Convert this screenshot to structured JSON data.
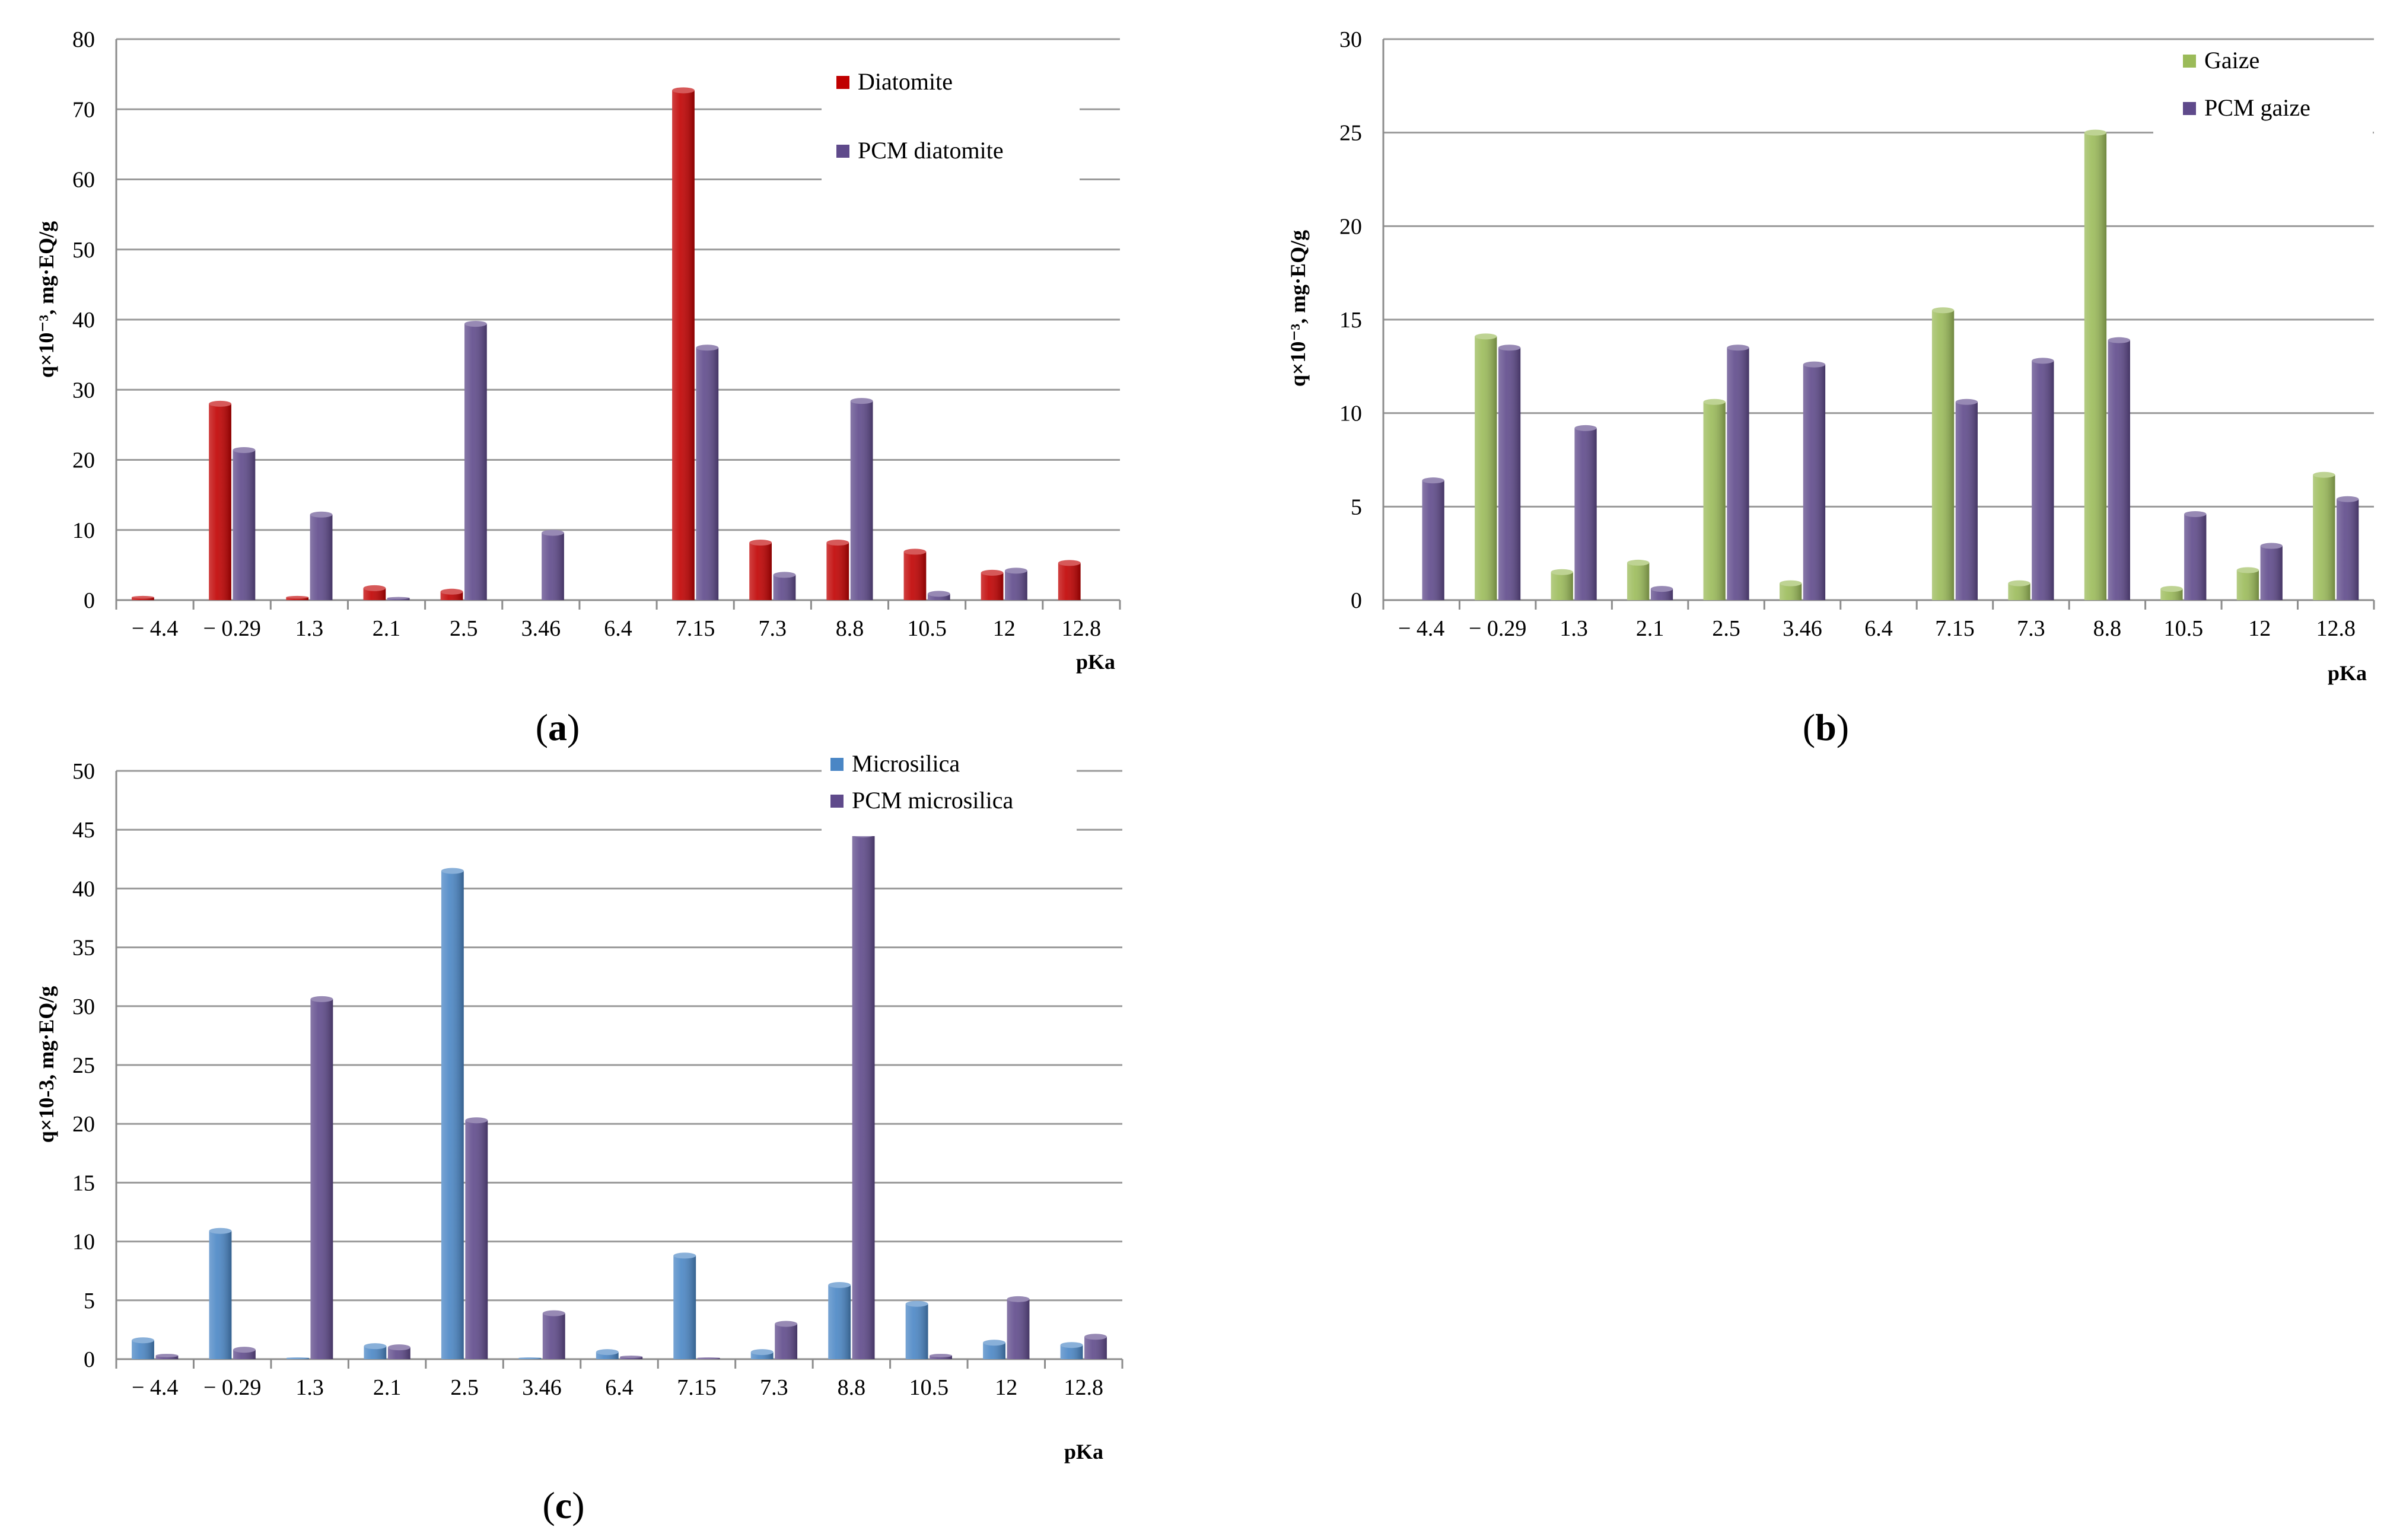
{
  "chart_data": [
    {
      "id": "a",
      "type": "bar",
      "panel_label": "a",
      "categories": [
        "− 4.4",
        "− 0.29",
        "1.3",
        "2.1",
        "2.5",
        "3.46",
        "6.4",
        "7.15",
        "7.3",
        "8.8",
        "10.5",
        "12",
        "12.8"
      ],
      "series": [
        {
          "name": "Diatomite",
          "color": "#c00000",
          "values": [
            0.4,
            28,
            0.4,
            1.7,
            1.2,
            0,
            0,
            72.7,
            8.2,
            8.2,
            6.9,
            3.9,
            5.3
          ]
        },
        {
          "name": "PCM diatomite",
          "color": "#5f4a8b",
          "values": [
            0,
            21.4,
            12.2,
            0.3,
            39.4,
            9.6,
            0,
            36,
            3.6,
            28.4,
            0.9,
            4.2,
            0
          ]
        }
      ],
      "ylabel": "q×10⁻³, mg·EQ/g",
      "xlabel": "pKa",
      "ylim": [
        0,
        80
      ],
      "yticks": [
        0,
        10,
        20,
        30,
        40,
        50,
        60,
        70,
        80
      ],
      "legend_position": "top-right"
    },
    {
      "id": "b",
      "type": "bar",
      "panel_label": "b",
      "categories": [
        "− 4.4",
        "− 0.29",
        "1.3",
        "2.1",
        "2.5",
        "3.46",
        "6.4",
        "7.15",
        "7.3",
        "8.8",
        "10.5",
        "12",
        "12.8"
      ],
      "series": [
        {
          "name": "Gaize",
          "color": "#9bbb59",
          "values": [
            0,
            14.1,
            1.5,
            2,
            10.6,
            0.9,
            0,
            15.5,
            0.9,
            25,
            0.6,
            1.6,
            6.7
          ]
        },
        {
          "name": "PCM gaize",
          "color": "#5f4a8b",
          "values": [
            6.4,
            13.5,
            9.2,
            0.6,
            13.5,
            12.6,
            0,
            10.6,
            12.8,
            13.9,
            4.6,
            2.9,
            5.4
          ]
        }
      ],
      "ylabel": "q×10⁻³, mg·EQ/g",
      "xlabel": "pKa",
      "ylim": [
        0,
        30
      ],
      "yticks": [
        0,
        5,
        10,
        15,
        20,
        25,
        30
      ],
      "legend_position": "top-right"
    },
    {
      "id": "c",
      "type": "bar",
      "panel_label": "c",
      "categories": [
        "− 4.4",
        "− 0.29",
        "1.3",
        "2.1",
        "2.5",
        "3.46",
        "6.4",
        "7.15",
        "7.3",
        "8.8",
        "10.5",
        "12",
        "12.8"
      ],
      "series": [
        {
          "name": "Microsilica",
          "color": "#4a86c5",
          "values": [
            1.6,
            10.9,
            0.1,
            1.1,
            41.5,
            0.1,
            0.6,
            8.8,
            0.6,
            6.3,
            4.7,
            1.4,
            1.2
          ]
        },
        {
          "name": "PCM microsilica",
          "color": "#5f4a8b",
          "values": [
            0.3,
            0.8,
            30.6,
            1,
            20.3,
            3.9,
            0.2,
            0.1,
            3,
            44.6,
            0.3,
            5.1,
            1.9
          ]
        }
      ],
      "ylabel": "q×10-3, mg·EQ/g",
      "xlabel": "pKa",
      "ylim": [
        0,
        50
      ],
      "yticks": [
        0,
        5,
        10,
        15,
        20,
        25,
        30,
        35,
        40,
        45,
        50
      ],
      "legend_position": "top-right"
    }
  ]
}
